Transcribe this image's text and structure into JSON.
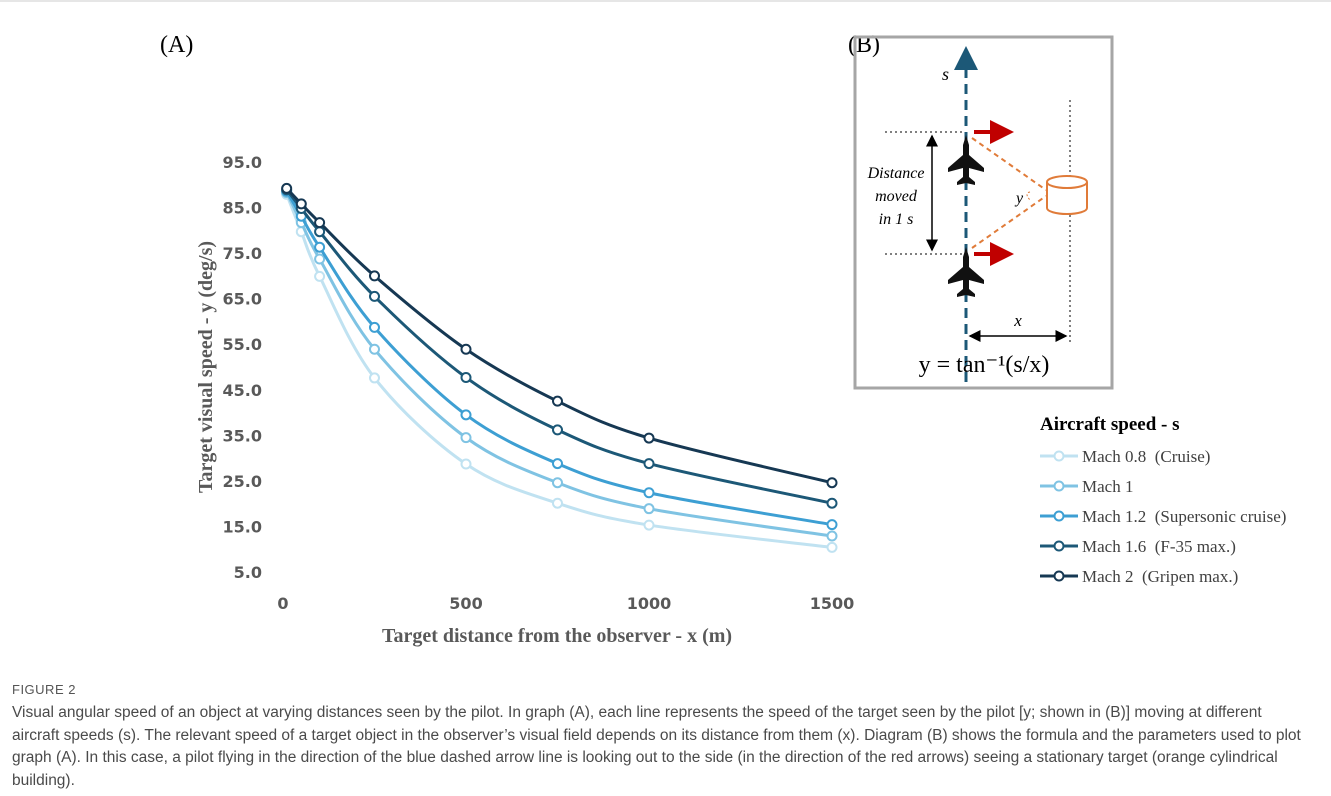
{
  "panel_labels": [
    "(A)",
    "(B)"
  ],
  "chart_data": {
    "type": "line",
    "xlabel": "Target distance from the observer - x (m)",
    "ylabel": "Target visual speed - y (deg/s)",
    "legend_title": "Aircraft speed - s",
    "legend": "right",
    "grid": false,
    "x": [
      10,
      50,
      100,
      250,
      500,
      750,
      1000,
      1500
    ],
    "xlim": [
      0,
      1500
    ],
    "xticks": [
      0,
      500,
      1000,
      1500
    ],
    "ylim": [
      5,
      95
    ],
    "yticks": [
      {
        "value": 5,
        "label": "5.0"
      },
      {
        "value": 15,
        "label": "15.0"
      },
      {
        "value": 25,
        "label": "25.0"
      },
      {
        "value": 35,
        "label": "35.0"
      },
      {
        "value": 45,
        "label": "45.0"
      },
      {
        "value": 55,
        "label": "55.0"
      },
      {
        "value": 65,
        "label": "65.0"
      },
      {
        "value": 75,
        "label": "75.0"
      },
      {
        "value": 85,
        "label": "85.0"
      },
      {
        "value": 95,
        "label": "95.0"
      }
    ],
    "series": [
      {
        "name": "Mach 0.8  (Cruise)",
        "color": "#c0e2f1",
        "values": [
          87.9,
          79.7,
          69.9,
          47.6,
          28.7,
          20.1,
          15.3,
          10.4
        ]
      },
      {
        "name": "Mach 1",
        "color": "#7fc3e3",
        "values": [
          88.3,
          81.7,
          73.7,
          53.9,
          34.5,
          24.6,
          18.9,
          12.9
        ]
      },
      {
        "name": "Mach 1.2  (Supersonic cruise)",
        "color": "#3d9fd3",
        "values": [
          88.6,
          83.1,
          76.3,
          58.7,
          39.5,
          28.8,
          22.4,
          15.4
        ]
      },
      {
        "name": "Mach 1.6  (F-35 max.)",
        "color": "#1c5877",
        "values": [
          88.9,
          84.8,
          79.7,
          65.5,
          47.7,
          36.2,
          28.8,
          20.1
        ]
      },
      {
        "name": "Mach 2  (Gripen max.)",
        "color": "#163853",
        "values": [
          89.2,
          85.8,
          81.7,
          70.0,
          53.9,
          42.5,
          34.4,
          24.6
        ]
      }
    ]
  },
  "diagram": {
    "speed_label": "s",
    "distance_label": [
      "Distance",
      "moved",
      "in 1 s"
    ],
    "angle_label": "y",
    "offset_label": "x",
    "formula": "y = tan⁻¹(s/x)"
  },
  "caption": {
    "label": "FIGURE 2",
    "text": "Visual angular speed of an object at varying distances seen by the pilot. In graph (A), each line represents the speed of the target seen by the pilot [y; shown in (B)] moving at different aircraft speeds (s). The relevant speed of a target object in the observer’s visual field depends on its distance from them (x). Diagram (B) shows the formula and the parameters used to plot graph (A). In this case, a pilot flying in the direction of the blue dashed arrow line is looking out to the side (in the direction of the red arrows) seeing a stationary target (orange cylindrical building)."
  }
}
